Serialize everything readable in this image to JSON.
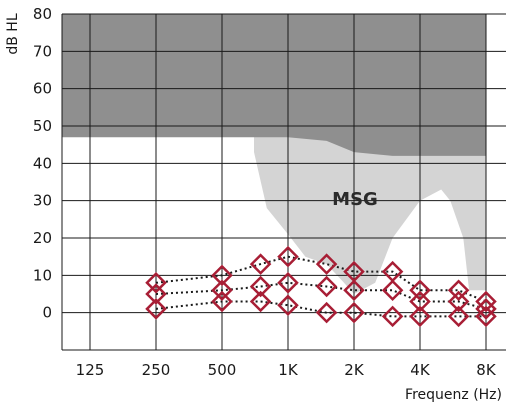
{
  "chart_data": {
    "type": "scatter",
    "title": "",
    "ylabel": "dB HL",
    "xlabel": "Frequenz (Hz)",
    "ylim": [
      -10,
      80
    ],
    "yticks": [
      0,
      10,
      20,
      30,
      40,
      50,
      60,
      70,
      80
    ],
    "xticks": [
      "125",
      "250",
      "500",
      "1K",
      "2K",
      "4K",
      "8K"
    ],
    "x_scale": "log2",
    "grid": true,
    "annotation": "MSG",
    "colors": {
      "marker": "#a81e35",
      "dark_region": "#8f8f8f",
      "light_region": "#d4d4d4",
      "grid": "#1a1a1a"
    },
    "dark_region": {
      "x": [
        "125",
        "250",
        "500",
        "700",
        "1K",
        "1.5K",
        "2K",
        "3K",
        "4K",
        "5K",
        "6K",
        "8K"
      ],
      "lower_y": [
        47,
        47,
        47,
        47,
        47,
        46,
        43,
        42,
        42,
        42,
        42,
        42
      ]
    },
    "light_region": {
      "x": [
        "700",
        "800",
        "1K",
        "1.2K",
        "1.5K",
        "1.8K",
        "2K",
        "2.5K",
        "3K",
        "4K",
        "5K",
        "5.5K",
        "6.3K",
        "6.7K",
        "8K"
      ],
      "lower_y": [
        43,
        28,
        21,
        15,
        13,
        8,
        5,
        8,
        20,
        30,
        33,
        30,
        20,
        6,
        6
      ]
    },
    "series": [
      {
        "x": [
          "250",
          "500",
          "750",
          "1K",
          "1.5K",
          "2K",
          "3K",
          "4K",
          "6K",
          "8K"
        ],
        "values": [
          8,
          10,
          13,
          15,
          13,
          11,
          11,
          6,
          6,
          3
        ]
      },
      {
        "x": [
          "250",
          "500",
          "750",
          "1K",
          "1.5K",
          "2K",
          "3K",
          "4K",
          "6K",
          "8K"
        ],
        "values": [
          5,
          6,
          7,
          8,
          7,
          6,
          6,
          3,
          3,
          1
        ]
      },
      {
        "x": [
          "250",
          "500",
          "750",
          "1K",
          "1.5K",
          "2K",
          "3K",
          "4K",
          "6K",
          "8K"
        ],
        "values": [
          1,
          3,
          3,
          2,
          0,
          0,
          -1,
          -1,
          -1,
          -1
        ]
      }
    ]
  }
}
